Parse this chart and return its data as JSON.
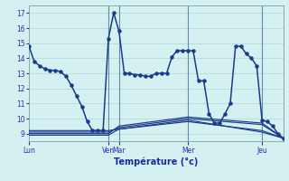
{
  "background_color": "#d4f0f0",
  "grid_color": "#b8dede",
  "line_color": "#1a3a8a",
  "marker": "o",
  "marker_size": 2.2,
  "line_width": 1.1,
  "xlabel": "Température (°c)",
  "ylim": [
    8.5,
    17.5
  ],
  "yticks": [
    9,
    10,
    11,
    12,
    13,
    14,
    15,
    16,
    17
  ],
  "xlim": [
    0,
    96
  ],
  "day_ticks": [
    0,
    30,
    34,
    60,
    88
  ],
  "day_labels": [
    "Lun",
    "Ven",
    "Mar",
    "Mer",
    "Jeu"
  ],
  "vlines": [
    30,
    34,
    60,
    88
  ],
  "series_main": {
    "x": [
      0,
      2,
      4,
      6,
      8,
      10,
      12,
      14,
      16,
      18,
      20,
      22,
      24,
      26,
      28,
      30,
      32,
      34,
      36,
      38,
      40,
      42,
      44,
      46,
      48,
      50,
      52,
      54,
      56,
      58,
      60,
      62,
      64,
      66,
      68,
      70,
      72,
      74,
      76,
      78,
      80,
      82,
      84,
      86,
      88,
      90,
      92,
      94,
      96
    ],
    "y": [
      14.8,
      13.8,
      13.5,
      13.3,
      13.2,
      13.2,
      13.1,
      12.8,
      12.2,
      11.5,
      10.8,
      9.8,
      9.2,
      9.2,
      9.2,
      15.3,
      17.0,
      15.8,
      13.0,
      13.0,
      12.9,
      12.9,
      12.8,
      12.8,
      13.0,
      13.0,
      13.0,
      14.1,
      14.5,
      14.5,
      14.5,
      14.5,
      12.5,
      12.5,
      10.3,
      9.7,
      9.7,
      10.3,
      11.0,
      14.8,
      14.8,
      14.3,
      14.0,
      13.5,
      9.9,
      9.8,
      9.5,
      9.0,
      8.7
    ]
  },
  "series_flat": [
    {
      "x": [
        0,
        30,
        34,
        60,
        88,
        96
      ],
      "y": [
        9.2,
        9.2,
        9.3,
        9.8,
        9.2,
        8.7
      ]
    },
    {
      "x": [
        0,
        30,
        34,
        60,
        88,
        96
      ],
      "y": [
        9.1,
        9.1,
        9.4,
        10.0,
        9.6,
        8.7
      ]
    },
    {
      "x": [
        0,
        30,
        34,
        60,
        88,
        96
      ],
      "y": [
        9.0,
        9.0,
        9.5,
        10.1,
        9.7,
        8.7
      ]
    },
    {
      "x": [
        0,
        30,
        34,
        60,
        88,
        96
      ],
      "y": [
        8.9,
        8.9,
        9.3,
        9.9,
        9.1,
        8.7
      ]
    }
  ]
}
